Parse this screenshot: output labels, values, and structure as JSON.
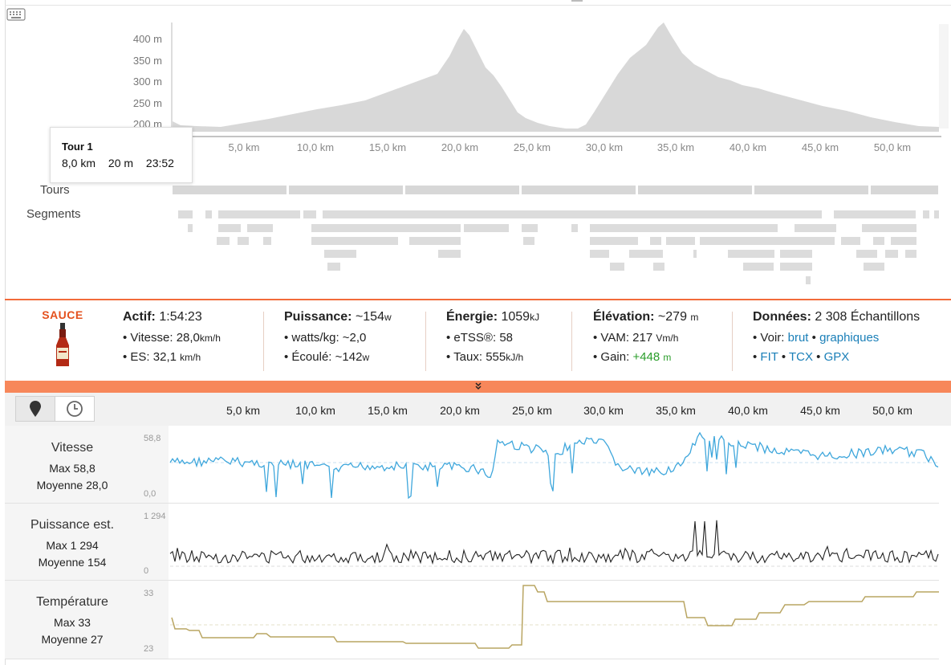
{
  "elevation": {
    "y_ticks": [
      "400 m",
      "350 m",
      "300 m",
      "250 m",
      "200 m"
    ],
    "km_ticks": [
      "5,0 km",
      "10,0 km",
      "15,0 km",
      "20,0 km",
      "25,0 km",
      "30,0 km",
      "35,0 km",
      "40,0 km",
      "45,0 km",
      "50,0 km"
    ]
  },
  "rows": {
    "tours_label": "Tours",
    "segments_label": "Segments"
  },
  "tooltip": {
    "title": "Tour 1",
    "distance": "8,0 km",
    "elevation": "20 m",
    "time": "23:52"
  },
  "summary": {
    "logo": "SAUCE",
    "actif": {
      "label": "Actif:",
      "value": "1:54:23",
      "speed_label": "Vitesse:",
      "speed": "28,0",
      "speed_unit": "km/h",
      "es_label": "ES:",
      "es": "32,1",
      "es_unit": "km/h"
    },
    "puissance": {
      "label": "Puissance:",
      "value": "~154",
      "unit": "w",
      "wkg_label": "watts/kg:",
      "wkg": "~2,0",
      "ecoule_label": "Écoulé:",
      "ecoule": "~142",
      "ecoule_unit": "w"
    },
    "energie": {
      "label": "Énergie:",
      "value": "1059",
      "unit": "kJ",
      "etss_label": "eTSS®:",
      "etss": "58",
      "taux_label": "Taux:",
      "taux": "555",
      "taux_unit": "kJ/h"
    },
    "elevation": {
      "label": "Élévation:",
      "value": "~279",
      "unit": "m",
      "vam_label": "VAM:",
      "vam": "217",
      "vam_unit": "Vm/h",
      "gain_label": "Gain:",
      "gain": "+448",
      "gain_unit": "m"
    },
    "donnees": {
      "label": "Données:",
      "value": "2 308 Échantillons",
      "voir_label": "Voir:",
      "brut": "brut",
      "graphiques": "graphiques",
      "fit": "FIT",
      "tcx": "TCX",
      "gpx": "GPX"
    }
  },
  "tabs": {
    "map_icon": "map-pin-icon",
    "clock_icon": "clock-icon"
  },
  "bottom_km_ticks": [
    "5,0 km",
    "10,0 km",
    "15,0 km",
    "20,0 km",
    "25,0 km",
    "30,0 km",
    "35,0 km",
    "40,0 km",
    "45,0 km",
    "50,0 km"
  ],
  "panels": [
    {
      "title": "Vitesse",
      "max": "Max 58,8",
      "avg": "Moyenne 28,0",
      "ymax": "58,8",
      "ymin": "0,0",
      "color": "#3fa7dc"
    },
    {
      "title": "Puissance est.",
      "max": "Max 1 294",
      "avg": "Moyenne 154",
      "ymax": "1 294",
      "ymin": "0",
      "color": "#222222"
    },
    {
      "title": "Température",
      "max": "Max 33",
      "avg": "Moyenne 27",
      "ymax": "33",
      "ymin": "23",
      "color": "#b9a562"
    }
  ],
  "colors": {
    "accent": "#f26b3a",
    "link": "#1a7fb8",
    "gain": "#2a9d2a"
  }
}
